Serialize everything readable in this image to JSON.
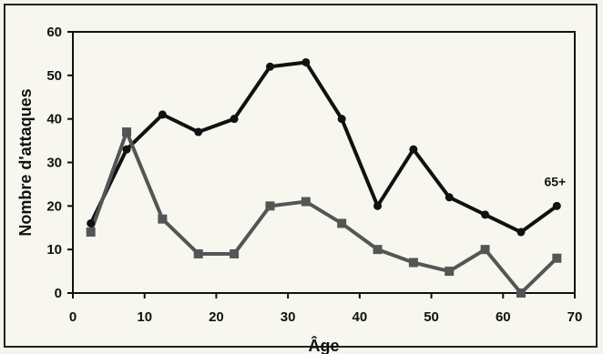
{
  "chart_data": {
    "type": "line",
    "title": "",
    "xlabel": "Âge",
    "ylabel": "Nombre d'attaques",
    "xlim": [
      0,
      70
    ],
    "ylim": [
      0,
      60
    ],
    "xticks": [
      0,
      10,
      20,
      30,
      40,
      50,
      60,
      70
    ],
    "yticks": [
      0,
      10,
      20,
      30,
      40,
      50,
      60
    ],
    "grid": false,
    "x": [
      2.5,
      7.5,
      12.5,
      17.5,
      22.5,
      27.5,
      32.5,
      37.5,
      42.5,
      47.5,
      52.5,
      57.5,
      62.5,
      67.5
    ],
    "series": [
      {
        "marker": "circle",
        "color": "#111111",
        "values": [
          16,
          33,
          41,
          37,
          40,
          52,
          53,
          40,
          20,
          33,
          22,
          18,
          14,
          20
        ]
      },
      {
        "marker": "square",
        "color": "#555555",
        "values": [
          14,
          37,
          17,
          9,
          9,
          20,
          21,
          16,
          10,
          7,
          5,
          10,
          0,
          8
        ]
      }
    ],
    "annotations": [
      {
        "text": "65+",
        "x": 67.5,
        "y": 20
      }
    ]
  }
}
